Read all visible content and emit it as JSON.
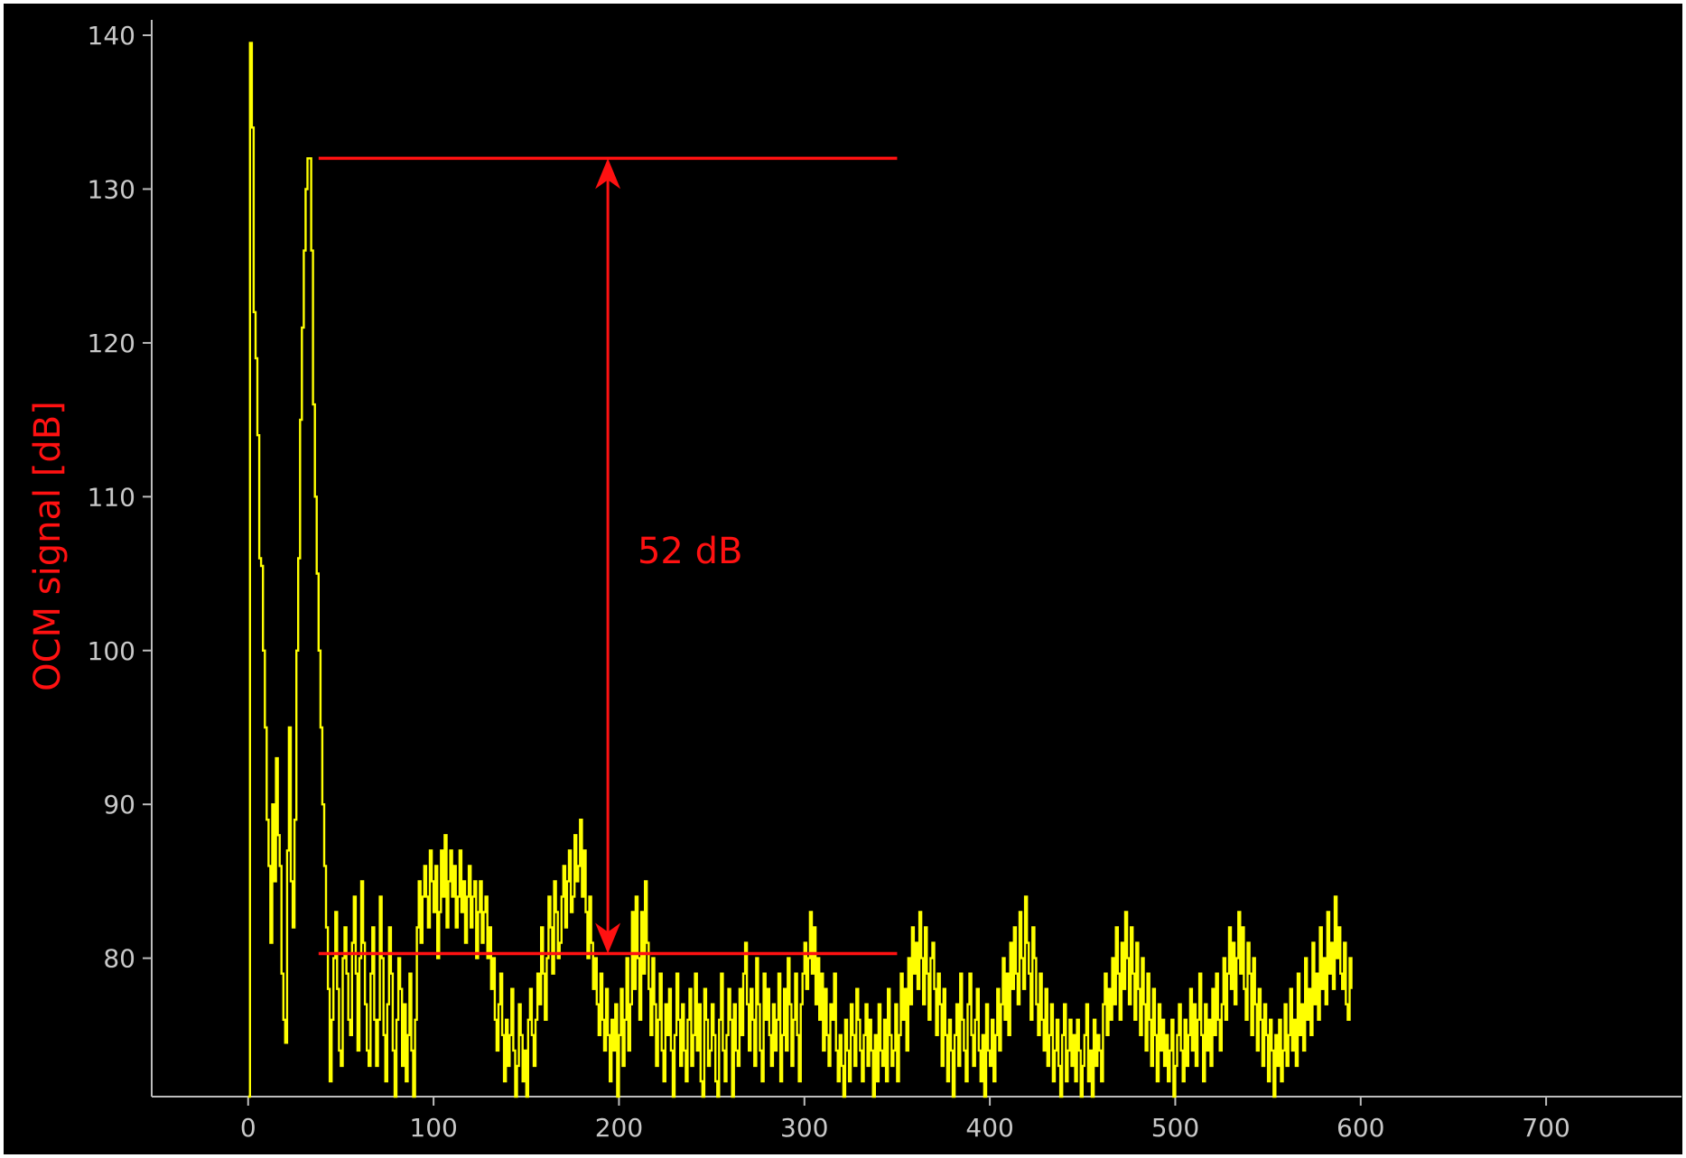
{
  "chart_data": {
    "type": "line",
    "title": "",
    "xlabel": "",
    "ylabel": "OCM signal [dB]",
    "xlim": [
      -52,
      773
    ],
    "ylim": [
      71,
      141
    ],
    "x_ticks": [
      0,
      100,
      200,
      300,
      400,
      500,
      600,
      700
    ],
    "y_ticks": [
      80,
      90,
      100,
      110,
      120,
      130,
      140
    ],
    "grid": false,
    "colors": {
      "background": "#000000",
      "frame": "#ffffff",
      "axis": "#bdbdbd",
      "series": "#ffff00",
      "annotation": "#ff1111"
    },
    "series": [
      {
        "name": "OCM A-scan",
        "x_start": 0,
        "x_step": 1,
        "note": "values are approximate, read off the plot",
        "values": [
          71,
          139.5,
          134,
          122,
          119,
          114,
          106,
          105.5,
          100,
          95,
          89,
          86,
          81,
          90,
          85,
          93,
          88,
          86,
          79,
          76,
          74.5,
          87,
          95,
          85,
          82,
          89,
          100,
          106,
          115,
          121,
          126,
          130,
          132,
          132,
          126,
          116,
          110,
          105,
          100,
          95,
          90,
          86,
          82,
          78,
          72,
          76,
          80,
          83,
          78,
          74,
          73,
          80,
          82,
          79,
          76,
          75,
          81,
          84,
          79,
          74,
          80,
          85,
          81,
          77,
          74,
          73,
          79,
          82,
          76,
          73,
          76,
          84,
          80,
          75,
          72,
          77,
          82,
          79,
          74,
          71,
          76,
          80,
          78,
          73,
          77,
          72,
          75,
          79,
          74,
          71,
          76,
          82,
          85,
          81,
          84,
          86,
          84,
          82,
          87,
          85,
          83,
          86,
          80,
          83,
          87,
          84,
          88,
          82,
          85,
          87,
          84,
          86,
          82,
          84,
          87,
          83,
          85,
          81,
          84,
          86,
          82,
          84,
          85,
          80,
          83,
          85,
          81,
          83,
          84,
          80,
          82,
          78,
          80,
          76,
          74,
          77,
          79,
          75,
          72,
          76,
          73,
          75,
          78,
          74,
          71,
          73,
          77,
          75,
          72,
          74,
          71,
          76,
          78,
          75,
          73,
          76,
          79,
          77,
          82,
          79,
          76,
          80,
          84,
          82,
          79,
          85,
          83,
          80,
          81,
          84,
          86,
          82,
          85,
          87,
          83,
          84,
          88,
          85,
          86,
          89,
          84,
          87,
          83,
          80,
          84,
          81,
          78,
          80,
          77,
          75,
          79,
          76,
          74,
          78,
          75,
          72,
          76,
          74,
          77,
          71,
          75,
          78,
          73,
          76,
          80,
          74,
          77,
          83,
          78,
          84,
          80,
          76,
          83,
          79,
          85,
          81,
          78,
          75,
          80,
          77,
          73,
          76,
          79,
          74,
          72,
          77,
          75,
          78,
          74,
          71,
          75,
          79,
          76,
          73,
          77,
          74,
          72,
          76,
          78,
          73,
          75,
          79,
          74,
          77,
          72,
          71,
          78,
          76,
          73,
          74,
          77,
          75,
          72,
          71,
          76,
          79,
          74,
          72,
          75,
          78,
          76,
          71,
          77,
          74,
          73,
          78,
          75,
          79,
          81,
          77,
          74,
          78,
          76,
          73,
          80,
          77,
          74,
          72,
          79,
          76,
          78,
          75,
          73,
          77,
          74,
          76,
          79,
          72,
          75,
          78,
          74,
          80,
          77,
          73,
          76,
          79,
          75,
          72,
          77,
          79,
          81,
          78,
          80,
          83,
          79,
          82,
          77,
          80,
          76,
          79,
          74,
          78,
          75,
          73,
          77,
          76,
          79,
          74,
          72,
          75,
          73,
          71,
          76,
          74,
          72,
          77,
          75,
          73,
          78,
          76,
          74,
          72,
          75,
          77,
          73,
          76,
          74,
          71,
          75,
          72,
          77,
          74,
          73,
          76,
          72,
          78,
          75,
          73,
          74,
          77,
          72,
          75,
          79,
          76,
          78,
          74,
          80,
          77,
          82,
          79,
          81,
          78,
          83,
          80,
          77,
          82,
          79,
          76,
          80,
          81,
          78,
          75,
          79,
          77,
          73,
          78,
          75,
          72,
          76,
          74,
          71,
          75,
          77,
          73,
          79,
          76,
          74,
          72,
          77,
          79,
          75,
          73,
          76,
          78,
          74,
          72,
          75,
          71,
          77,
          74,
          73,
          76,
          72,
          75,
          78,
          74,
          77,
          80,
          76,
          79,
          75,
          81,
          78,
          82,
          79,
          77,
          83,
          80,
          78,
          84,
          81,
          79,
          76,
          82,
          80,
          77,
          75,
          79,
          76,
          74,
          78,
          73,
          75,
          77,
          72,
          74,
          76,
          73,
          71,
          75,
          77,
          72,
          74,
          76,
          73,
          75,
          72,
          76,
          74,
          71,
          73,
          75,
          77,
          72,
          74,
          71,
          76,
          73,
          75,
          74,
          72,
          77,
          79,
          75,
          78,
          76,
          80,
          77,
          82,
          79,
          76,
          81,
          78,
          83,
          80,
          77,
          82,
          79,
          76,
          81,
          78,
          75,
          80,
          77,
          74,
          79,
          76,
          73,
          78,
          75,
          72,
          77,
          74,
          76,
          73,
          75,
          72,
          74,
          76,
          71,
          73,
          75,
          77,
          74,
          72,
          76,
          73,
          75,
          78,
          74,
          77,
          73,
          76,
          79,
          75,
          72,
          77,
          74,
          76,
          73,
          78,
          75,
          79,
          76,
          74,
          77,
          80,
          76,
          79,
          82,
          78,
          81,
          77,
          80,
          83,
          79,
          82,
          78,
          76,
          81,
          79,
          75,
          80,
          77,
          74,
          78,
          76,
          73,
          77,
          75,
          72,
          76,
          74,
          71,
          75,
          73,
          76,
          72,
          74,
          77,
          73,
          75,
          78,
          74,
          76,
          73,
          79,
          75,
          77,
          74,
          80,
          76,
          78,
          75,
          81,
          77,
          79,
          76,
          82,
          78,
          80,
          77,
          83,
          79,
          81,
          78,
          84,
          80,
          82,
          79,
          78,
          81,
          77,
          76,
          80,
          78
        ]
      }
    ],
    "annotations": [
      {
        "type": "hline",
        "y": 132,
        "x_from": 38,
        "x_to": 350
      },
      {
        "type": "hline",
        "y": 80.3,
        "x_from": 38,
        "x_to": 350
      },
      {
        "type": "double-arrow",
        "x": 194,
        "y_from": 80.3,
        "y_to": 132
      },
      {
        "type": "text",
        "text": "52 dB",
        "x": 210,
        "y": 106.5
      }
    ]
  }
}
